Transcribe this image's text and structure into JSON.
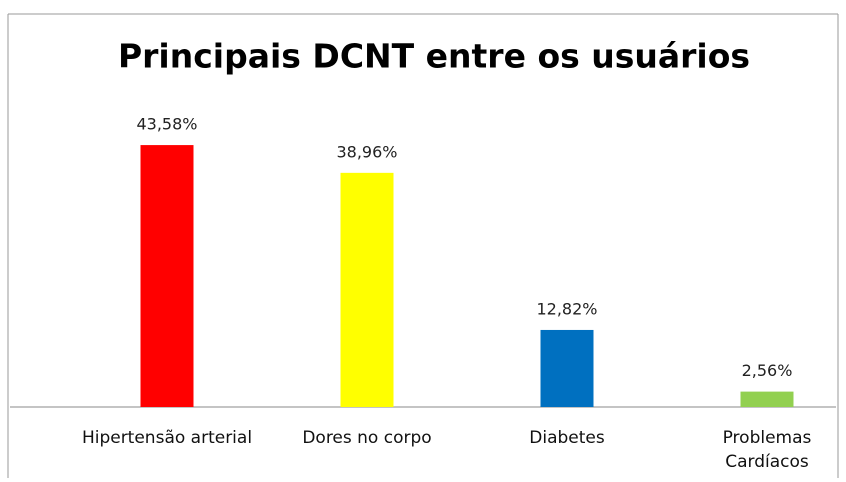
{
  "chart_data": {
    "type": "bar",
    "title": "Principais DCNT entre os usuários",
    "categories": [
      "Hipertensão arterial",
      "Dores no corpo",
      "Diabetes",
      "Problemas\nCardíacos"
    ],
    "values": [
      43.58,
      38.96,
      12.82,
      2.56
    ],
    "value_labels": [
      "43,58%",
      "38,96%",
      "12,82%",
      "2,56%"
    ],
    "colors": [
      "#ff0000",
      "#ffff00",
      "#0070c0",
      "#92d050"
    ]
  }
}
